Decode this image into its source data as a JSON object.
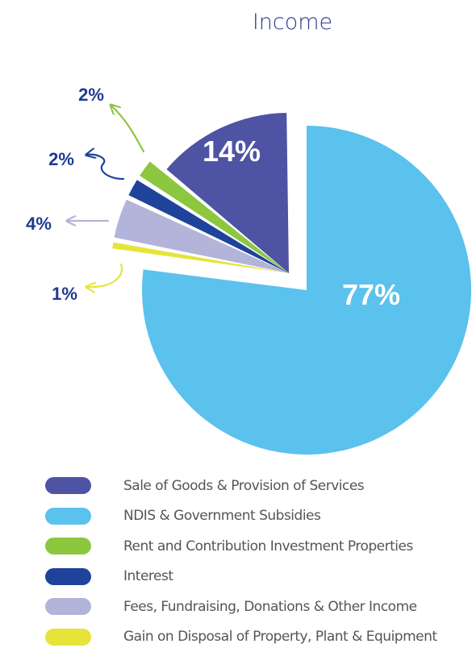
{
  "chart_data": {
    "type": "pie",
    "title": "Income",
    "series": [
      {
        "name": "Sale of Goods & Provision of Services",
        "value": 14,
        "label": "14%",
        "color": "#4f53a3"
      },
      {
        "name": "NDIS & Government Subsidies",
        "value": 77,
        "label": "77%",
        "color": "#5bc1ed"
      },
      {
        "name": "Rent and Contribution Investment Properties",
        "value": 2,
        "label": "2%",
        "color": "#8dc63f"
      },
      {
        "name": "Interest",
        "value": 2,
        "label": "2%",
        "color": "#1f439a"
      },
      {
        "name": "Fees, Fundraising, Donations & Other Income",
        "value": 4,
        "label": "4%",
        "color": "#b3b4d9"
      },
      {
        "name": "Gain on Disposal of Property, Plant & Equipment",
        "value": 1,
        "label": "1%",
        "color": "#e6e43a"
      }
    ],
    "legend_position": "bottom",
    "label_color_inside": "#ffffff",
    "label_color_outside": "#1f3a8f"
  }
}
